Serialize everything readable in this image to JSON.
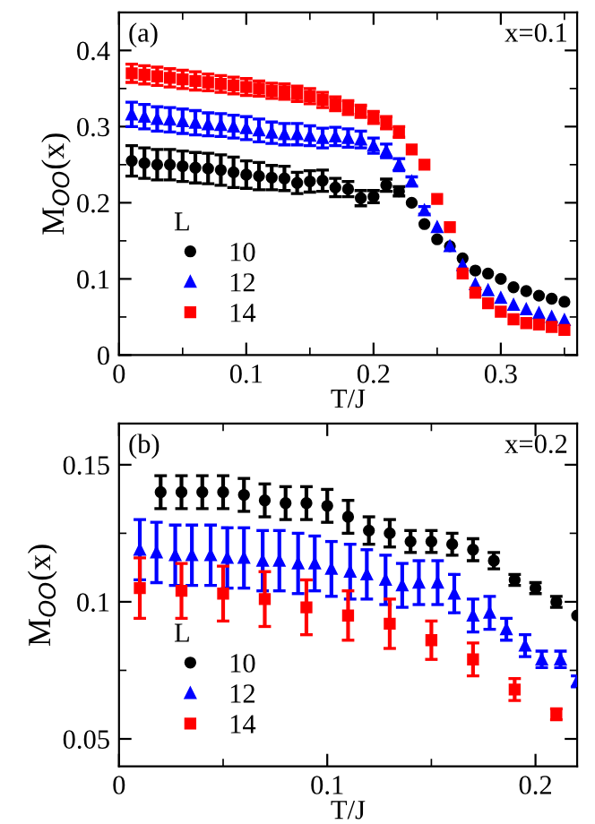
{
  "chart_data": [
    {
      "type": "scatter",
      "xlabel": "T/J",
      "ylabel": "M$_{OO}$(x)",
      "annotations": [
        "(a)",
        "x=0.1"
      ],
      "legend_title": "L",
      "legend": "bottom left",
      "xlim": [
        0,
        0.36
      ],
      "ylim": [
        0,
        0.45
      ],
      "xticks": [
        0,
        0.1,
        0.2,
        0.3
      ],
      "yticks": [
        0,
        0.1,
        0.2,
        0.3,
        0.4
      ],
      "grid": false,
      "x": [
        0.01,
        0.02,
        0.03,
        0.04,
        0.05,
        0.06,
        0.07,
        0.08,
        0.09,
        0.1,
        0.11,
        0.12,
        0.13,
        0.14,
        0.15,
        0.16,
        0.17,
        0.18,
        0.19,
        0.2,
        0.21,
        0.22,
        0.23,
        0.24,
        0.25,
        0.26,
        0.27,
        0.28,
        0.29,
        0.3,
        0.31,
        0.32,
        0.33,
        0.34,
        0.35
      ],
      "series": [
        {
          "name": "10",
          "color": "#000000",
          "marker": "circle",
          "values": [
            0.255,
            0.252,
            0.25,
            0.25,
            0.248,
            0.246,
            0.245,
            0.243,
            0.24,
            0.237,
            0.235,
            0.233,
            0.232,
            0.226,
            0.228,
            0.229,
            0.22,
            0.218,
            0.206,
            0.208,
            0.223,
            0.215,
            0.2,
            0.172,
            0.152,
            0.143,
            0.127,
            0.111,
            0.107,
            0.1,
            0.089,
            0.084,
            0.078,
            0.074,
            0.07
          ],
          "errors": [
            0.02,
            0.02,
            0.02,
            0.02,
            0.02,
            0.02,
            0.02,
            0.02,
            0.02,
            0.018,
            0.018,
            0.016,
            0.016,
            0.014,
            0.014,
            0.014,
            0.012,
            0.01,
            0.01,
            0.008,
            0.008,
            0.006,
            null,
            null,
            null,
            null,
            null,
            null,
            null,
            null,
            null,
            null,
            null,
            null,
            null
          ]
        },
        {
          "name": "12",
          "color": "#0000ff",
          "marker": "triangle",
          "values": [
            0.316,
            0.313,
            0.31,
            0.309,
            0.307,
            0.305,
            0.303,
            0.302,
            0.3,
            0.298,
            0.295,
            0.292,
            0.29,
            0.29,
            0.288,
            0.285,
            0.287,
            0.285,
            0.283,
            0.275,
            0.268,
            0.25,
            0.228,
            0.19,
            0.168,
            0.143,
            0.118,
            0.093,
            0.085,
            0.075,
            0.066,
            0.06,
            0.055,
            0.05,
            0.046
          ],
          "errors": [
            0.016,
            0.016,
            0.016,
            0.016,
            0.016,
            0.016,
            0.015,
            0.015,
            0.015,
            0.015,
            0.015,
            0.014,
            0.014,
            0.014,
            0.013,
            0.013,
            0.012,
            0.012,
            0.011,
            0.01,
            0.009,
            0.008,
            0.006,
            0.005,
            null,
            null,
            null,
            null,
            null,
            null,
            null,
            null,
            null,
            null,
            null
          ]
        },
        {
          "name": "14",
          "color": "#ff0000",
          "marker": "square",
          "values": [
            0.37,
            0.368,
            0.366,
            0.364,
            0.362,
            0.36,
            0.358,
            0.356,
            0.354,
            0.352,
            0.35,
            0.347,
            0.346,
            0.343,
            0.34,
            0.335,
            0.33,
            0.325,
            0.32,
            0.312,
            0.305,
            0.293,
            0.27,
            0.25,
            0.205,
            0.168,
            0.107,
            0.082,
            0.068,
            0.057,
            0.047,
            0.042,
            0.04,
            0.037,
            0.033
          ],
          "errors": [
            0.012,
            0.012,
            0.012,
            0.012,
            0.012,
            0.012,
            0.011,
            0.011,
            0.011,
            0.011,
            0.01,
            0.01,
            0.01,
            0.01,
            0.01,
            0.01,
            0.009,
            0.009,
            0.008,
            0.008,
            0.008,
            0.007,
            null,
            null,
            null,
            null,
            null,
            null,
            null,
            null,
            null,
            null,
            null,
            null,
            null
          ]
        }
      ]
    },
    {
      "type": "scatter",
      "xlabel": "T/J",
      "ylabel": "M$_{OO}$(x)",
      "annotations": [
        "(b)",
        "x=0.2"
      ],
      "legend_title": "L",
      "legend": "bottom left",
      "xlim": [
        0,
        0.22
      ],
      "ylim": [
        0.04,
        0.165
      ],
      "xticks": [
        0,
        0.1,
        0.2
      ],
      "yticks": [
        0.05,
        0.1,
        0.15
      ],
      "grid": false,
      "series": [
        {
          "name": "10",
          "color": "#000000",
          "marker": "circle",
          "x": [
            0.02,
            0.03,
            0.04,
            0.05,
            0.06,
            0.07,
            0.08,
            0.09,
            0.1,
            0.11,
            0.12,
            0.13,
            0.14,
            0.15,
            0.16,
            0.17,
            0.18,
            0.19,
            0.2,
            0.21,
            0.22
          ],
          "values": [
            0.14,
            0.14,
            0.14,
            0.14,
            0.139,
            0.137,
            0.136,
            0.136,
            0.135,
            0.131,
            0.126,
            0.125,
            0.122,
            0.122,
            0.121,
            0.119,
            0.115,
            0.108,
            0.105,
            0.1,
            0.095
          ],
          "errors": [
            0.006,
            0.006,
            0.006,
            0.006,
            0.006,
            0.006,
            0.006,
            0.006,
            0.006,
            0.006,
            0.005,
            0.005,
            0.004,
            0.004,
            0.004,
            0.004,
            0.003,
            0.002,
            0.002,
            0.002,
            null
          ]
        },
        {
          "name": "12",
          "color": "#0000ff",
          "marker": "triangle",
          "x": [
            0.01,
            0.018,
            0.027,
            0.035,
            0.044,
            0.052,
            0.06,
            0.069,
            0.077,
            0.086,
            0.094,
            0.102,
            0.111,
            0.119,
            0.128,
            0.136,
            0.144,
            0.153,
            0.161,
            0.17,
            0.178,
            0.186,
            0.195,
            0.203,
            0.212,
            0.22
          ],
          "values": [
            0.119,
            0.118,
            0.117,
            0.117,
            0.117,
            0.116,
            0.116,
            0.115,
            0.115,
            0.114,
            0.114,
            0.112,
            0.111,
            0.11,
            0.108,
            0.106,
            0.107,
            0.107,
            0.103,
            0.095,
            0.096,
            0.09,
            0.084,
            0.079,
            0.079,
            0.071
          ],
          "errors": [
            0.011,
            0.011,
            0.011,
            0.011,
            0.011,
            0.011,
            0.011,
            0.011,
            0.011,
            0.011,
            0.01,
            0.01,
            0.01,
            0.009,
            0.009,
            0.008,
            0.008,
            0.008,
            0.007,
            0.006,
            0.006,
            0.004,
            0.004,
            0.003,
            0.003,
            0.002
          ]
        },
        {
          "name": "14",
          "color": "#ff0000",
          "marker": "square",
          "x": [
            0.01,
            0.03,
            0.05,
            0.07,
            0.09,
            0.11,
            0.13,
            0.15,
            0.17,
            0.19,
            0.21
          ],
          "values": [
            0.105,
            0.104,
            0.103,
            0.101,
            0.098,
            0.095,
            0.092,
            0.086,
            0.079,
            0.068,
            0.059
          ],
          "errors": [
            0.011,
            0.01,
            0.01,
            0.01,
            0.01,
            0.009,
            0.009,
            0.007,
            0.006,
            0.004,
            0.002
          ]
        }
      ]
    }
  ]
}
